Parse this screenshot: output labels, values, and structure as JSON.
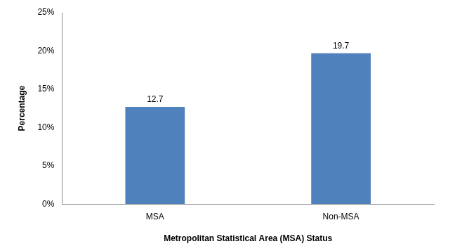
{
  "chart_data": {
    "type": "bar",
    "categories": [
      "MSA",
      "Non-MSA"
    ],
    "values": [
      12.7,
      19.7
    ],
    "color": "#4f81bd",
    "x_label": "Metropolitan Statistical Area (MSA) Status",
    "y_label": "Percentage",
    "ylim": [
      0,
      25
    ],
    "yticks": [
      {
        "value": 0,
        "label": "0%"
      },
      {
        "value": 5,
        "label": "5%"
      },
      {
        "value": 10,
        "label": "10%"
      },
      {
        "value": 15,
        "label": "15%"
      },
      {
        "value": 20,
        "label": "20%"
      },
      {
        "value": 25,
        "label": "25%"
      }
    ],
    "grid": false,
    "data_labels": true
  }
}
